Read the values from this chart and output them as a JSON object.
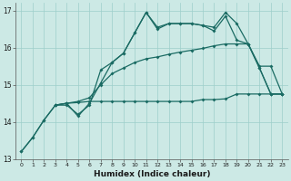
{
  "bg_color": "#cce9e5",
  "grid_color": "#9ecfca",
  "line_color": "#1a6b63",
  "xlabel": "Humidex (Indice chaleur)",
  "xlim": [
    -0.5,
    23.5
  ],
  "ylim": [
    13,
    17.2
  ],
  "xticks": [
    0,
    1,
    2,
    3,
    4,
    5,
    6,
    7,
    8,
    9,
    10,
    11,
    12,
    13,
    14,
    15,
    16,
    17,
    18,
    19,
    20,
    21,
    22,
    23
  ],
  "yticks": [
    13,
    14,
    15,
    16,
    17
  ],
  "line_jagged1": {
    "x": [
      0,
      1,
      2,
      3,
      4,
      5,
      6,
      7,
      8,
      9,
      10,
      11,
      12,
      13,
      14,
      15,
      16,
      17,
      18,
      19,
      20,
      21,
      22,
      23
    ],
    "y": [
      13.2,
      13.58,
      14.05,
      14.45,
      14.45,
      14.2,
      14.45,
      15.4,
      15.6,
      15.85,
      16.4,
      16.95,
      16.55,
      16.65,
      16.65,
      16.65,
      16.6,
      16.55,
      16.95,
      16.65,
      16.1,
      15.45,
      14.75,
      14.75
    ]
  },
  "line_jagged2": {
    "x": [
      0,
      1,
      2,
      3,
      4,
      5,
      6,
      7,
      8,
      9,
      10,
      11,
      12,
      13,
      14,
      15,
      16,
      17,
      18,
      19,
      20,
      21,
      22,
      23
    ],
    "y": [
      13.2,
      13.58,
      14.05,
      14.45,
      14.5,
      14.15,
      14.5,
      15.05,
      15.6,
      15.85,
      16.4,
      16.95,
      16.5,
      16.65,
      16.65,
      16.65,
      16.6,
      16.45,
      16.85,
      16.2,
      16.1,
      15.45,
      14.75,
      14.75
    ]
  },
  "line_diagonal": {
    "x": [
      3,
      4,
      5,
      6,
      7,
      8,
      9,
      10,
      11,
      12,
      13,
      14,
      15,
      16,
      17,
      18,
      19,
      20,
      21,
      22,
      23
    ],
    "y": [
      14.45,
      14.5,
      14.55,
      14.65,
      15.0,
      15.3,
      15.45,
      15.6,
      15.7,
      15.75,
      15.82,
      15.88,
      15.93,
      15.98,
      16.05,
      16.1,
      16.1,
      16.1,
      15.5,
      15.5,
      14.75
    ]
  },
  "line_flat": {
    "x": [
      3,
      4,
      5,
      6,
      7,
      8,
      9,
      10,
      11,
      12,
      13,
      14,
      15,
      16,
      17,
      18,
      19,
      20,
      21,
      22,
      23
    ],
    "y": [
      14.45,
      14.5,
      14.52,
      14.55,
      14.55,
      14.55,
      14.55,
      14.55,
      14.55,
      14.55,
      14.55,
      14.55,
      14.55,
      14.6,
      14.6,
      14.62,
      14.75,
      14.75,
      14.75,
      14.75,
      14.75
    ]
  }
}
